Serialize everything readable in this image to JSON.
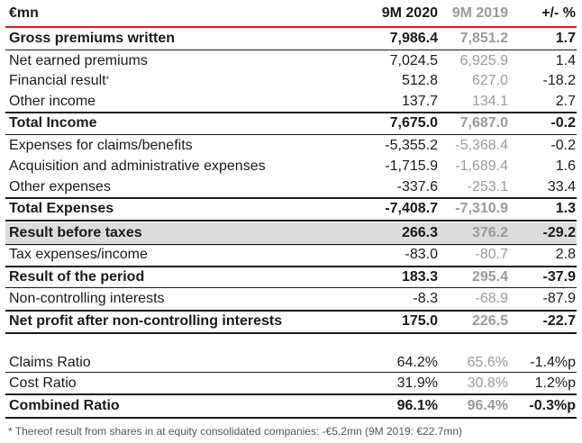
{
  "header": {
    "label": "€mn",
    "col1": "9M 2020",
    "col2": "9M 2019",
    "col3": "+/- %"
  },
  "rows": [
    {
      "label": "Gross premiums written",
      "v2020": "7,986.4",
      "v2019": "7,851.2",
      "chg": "1.7",
      "bold": true
    },
    {
      "label": "Net earned premiums",
      "v2020": "7,024.5",
      "v2019": "6,925.9",
      "chg": "1.4"
    },
    {
      "label": "Financial result",
      "sup": "*",
      "v2020": "512.8",
      "v2019": "627.0",
      "chg": "-18.2"
    },
    {
      "label": "Other income",
      "v2020": "137.7",
      "v2019": "134.1",
      "chg": "2.7"
    },
    {
      "label": "Total Income",
      "v2020": "7,675.0",
      "v2019": "7,687.0",
      "chg": "-0.2",
      "bold": true
    },
    {
      "label": "Expenses for claims/benefits",
      "v2020": "-5,355.2",
      "v2019": "-5,368.4",
      "chg": "-0.2"
    },
    {
      "label": "Acquisition and administrative expenses",
      "v2020": "-1,715.9",
      "v2019": "-1,689.4",
      "chg": "1.6"
    },
    {
      "label": "Other expenses",
      "v2020": "-337.6",
      "v2019": "-253.1",
      "chg": "33.4"
    },
    {
      "label": "Total Expenses",
      "v2020": "-7,408.7",
      "v2019": "-7,310.9",
      "chg": "1.3",
      "bold": true
    },
    {
      "label": "Result before taxes",
      "v2020": "266.3",
      "v2019": "376.2",
      "chg": "-29.2",
      "bold": true,
      "highlight": true
    },
    {
      "label": "Tax expenses/income",
      "v2020": "-83.0",
      "v2019": "-80.7",
      "chg": "2.8"
    },
    {
      "label": "Result of the period",
      "v2020": "183.3",
      "v2019": "295.4",
      "chg": "-37.9",
      "bold": true
    },
    {
      "label": "Non-controlling interests",
      "v2020": "-8.3",
      "v2019": "-68.9",
      "chg": "-87.9"
    },
    {
      "label": "Net profit after non-controlling interests",
      "v2020": "175.0",
      "v2019": "226.5",
      "chg": "-22.7",
      "bold": true
    }
  ],
  "ratios": [
    {
      "label": "Claims Ratio",
      "v2020": "64.2%",
      "v2019": "65.6%",
      "chg": "-1.4%p"
    },
    {
      "label": "Cost Ratio",
      "v2020": "31.9%",
      "v2019": "30.8%",
      "chg": "1.2%p"
    },
    {
      "label": "Combined Ratio",
      "v2020": "96.1%",
      "v2019": "96.4%",
      "chg": "-0.3%p",
      "bold": true
    }
  ],
  "footnote": "* Thereof result from shares in at equity consolidated companies: -€5.2mn (9M 2019: €22.7mn)",
  "colors": {
    "accent": "#d61f26",
    "prior_year": "#9a9a9a",
    "highlight": "#dcdcdc"
  }
}
